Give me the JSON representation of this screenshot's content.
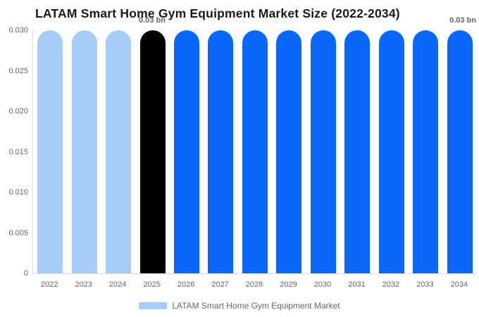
{
  "title": "LATAM Smart Home Gym Equipment Market Size (2022-2034)",
  "chart_data": {
    "type": "bar",
    "title": "LATAM Smart Home Gym Equipment Market Size (2022-2034)",
    "categories": [
      "2022",
      "2023",
      "2024",
      "2025",
      "2026",
      "2027",
      "2028",
      "2029",
      "2030",
      "2031",
      "2032",
      "2033",
      "2034"
    ],
    "values": [
      0.03,
      0.03,
      0.03,
      0.03,
      0.03,
      0.03,
      0.03,
      0.03,
      0.03,
      0.03,
      0.03,
      0.03,
      0.03
    ],
    "unit": "bn",
    "series_name": "LATAM Smart Home Gym Equipment Market",
    "ylim": [
      0,
      0.03
    ],
    "ytick_labels": [
      "0.030",
      "0.025",
      "0.020",
      "0.015",
      "0.010",
      "0.005",
      "0"
    ],
    "xlabel": "",
    "ylabel": "",
    "grid": false,
    "legend_position": "bottom-center",
    "bar_colors": [
      "#A6CDF8",
      "#A6CDF8",
      "#A6CDF8",
      "#000000",
      "#0A67FB",
      "#0A67FB",
      "#0A67FB",
      "#0A67FB",
      "#0A67FB",
      "#0A67FB",
      "#0A67FB",
      "#0A67FB",
      "#0A67FB"
    ],
    "data_labels": [
      {
        "category": "2025",
        "text": "0.03 bn"
      },
      {
        "category": "2034",
        "text": "0.03 bn"
      }
    ],
    "legend": {
      "label": "LATAM Smart Home Gym Equipment Market",
      "swatch_color": "#A6CDF8"
    }
  },
  "colors": {
    "light_blue": "#A6CDF8",
    "bright_blue": "#0A67FB",
    "highlight_black": "#000000",
    "axis_label": "#666666",
    "axis_line": "#dddddd",
    "title_text": "#1a1a1a",
    "data_label": "#666666"
  }
}
